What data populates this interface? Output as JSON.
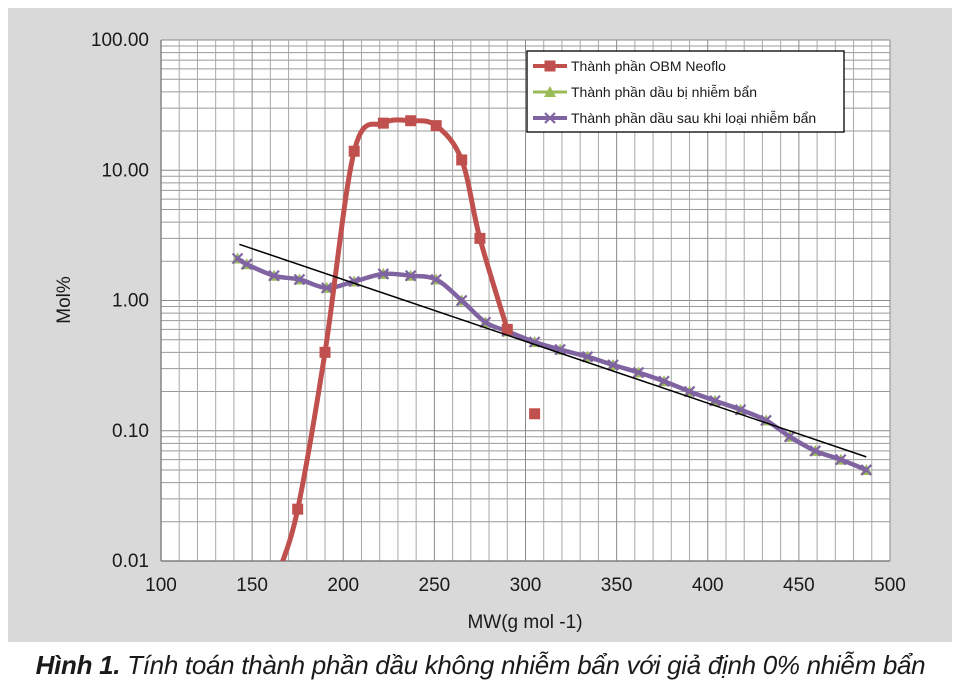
{
  "chart_data": {
    "type": "line",
    "x_scale": "linear",
    "y_scale": "log",
    "xlabel": "MW(g mol -1)",
    "ylabel": "Mol%",
    "xlim": [
      100,
      500
    ],
    "ylim": [
      0.01,
      100
    ],
    "x_ticks": [
      "100",
      "150",
      "200",
      "250",
      "300",
      "350",
      "400",
      "450",
      "500"
    ],
    "x_tick_values": [
      100,
      150,
      200,
      250,
      300,
      350,
      400,
      450,
      500
    ],
    "y_ticks": [
      "0.01",
      "0.10",
      "1.00",
      "10.00",
      "100.00"
    ],
    "y_tick_values": [
      0.01,
      0.1,
      1,
      10,
      100
    ],
    "grid": true,
    "legend_position": "top-right",
    "series": [
      {
        "name": "Thành phần OBM Neoflo",
        "color": "#c0504d",
        "marker": "square",
        "x": [
          175,
          190,
          206,
          222,
          237,
          251,
          265,
          275,
          290
        ],
        "y": [
          0.025,
          0.4,
          14,
          23,
          24,
          22,
          12,
          3,
          0.6
        ],
        "extra_points": {
          "x": [
            305
          ],
          "y": [
            0.135
          ]
        }
      },
      {
        "name": "Thành phần dầu bị nhiễm bẩn",
        "color": "#9bbb59",
        "marker": "triangle",
        "x": [
          142,
          147,
          162,
          176,
          191,
          206,
          222,
          237,
          251,
          265,
          278,
          290,
          305,
          319,
          334,
          348,
          362,
          376,
          390,
          404,
          418,
          432,
          445,
          459,
          473,
          487
        ],
        "y": [
          2.1,
          1.9,
          1.55,
          1.45,
          1.25,
          1.4,
          1.6,
          1.55,
          1.45,
          1.0,
          0.68,
          0.58,
          0.48,
          0.42,
          0.37,
          0.32,
          0.28,
          0.24,
          0.2,
          0.17,
          0.145,
          0.12,
          0.09,
          0.07,
          0.06,
          0.05
        ]
      },
      {
        "name": "Thành phần dầu sau khi loại nhiễm bẩn",
        "color": "#8064a2",
        "marker": "x",
        "x": [
          142,
          147,
          162,
          176,
          191,
          206,
          222,
          237,
          251,
          265,
          278,
          290,
          305,
          319,
          334,
          348,
          362,
          376,
          390,
          404,
          418,
          432,
          445,
          459,
          473,
          487
        ],
        "y": [
          2.1,
          1.9,
          1.55,
          1.45,
          1.25,
          1.4,
          1.6,
          1.55,
          1.45,
          1.0,
          0.68,
          0.58,
          0.48,
          0.42,
          0.37,
          0.32,
          0.28,
          0.24,
          0.2,
          0.17,
          0.145,
          0.12,
          0.09,
          0.07,
          0.06,
          0.05
        ]
      }
    ],
    "trendline": {
      "color": "#000000",
      "x": [
        143,
        487
      ],
      "y": [
        2.7,
        0.063
      ]
    }
  },
  "caption": {
    "label": "Hình 1.",
    "text": " Tính toán thành phần dầu không nhiễm bẩn với giả định 0% nhiễm bẩn"
  }
}
